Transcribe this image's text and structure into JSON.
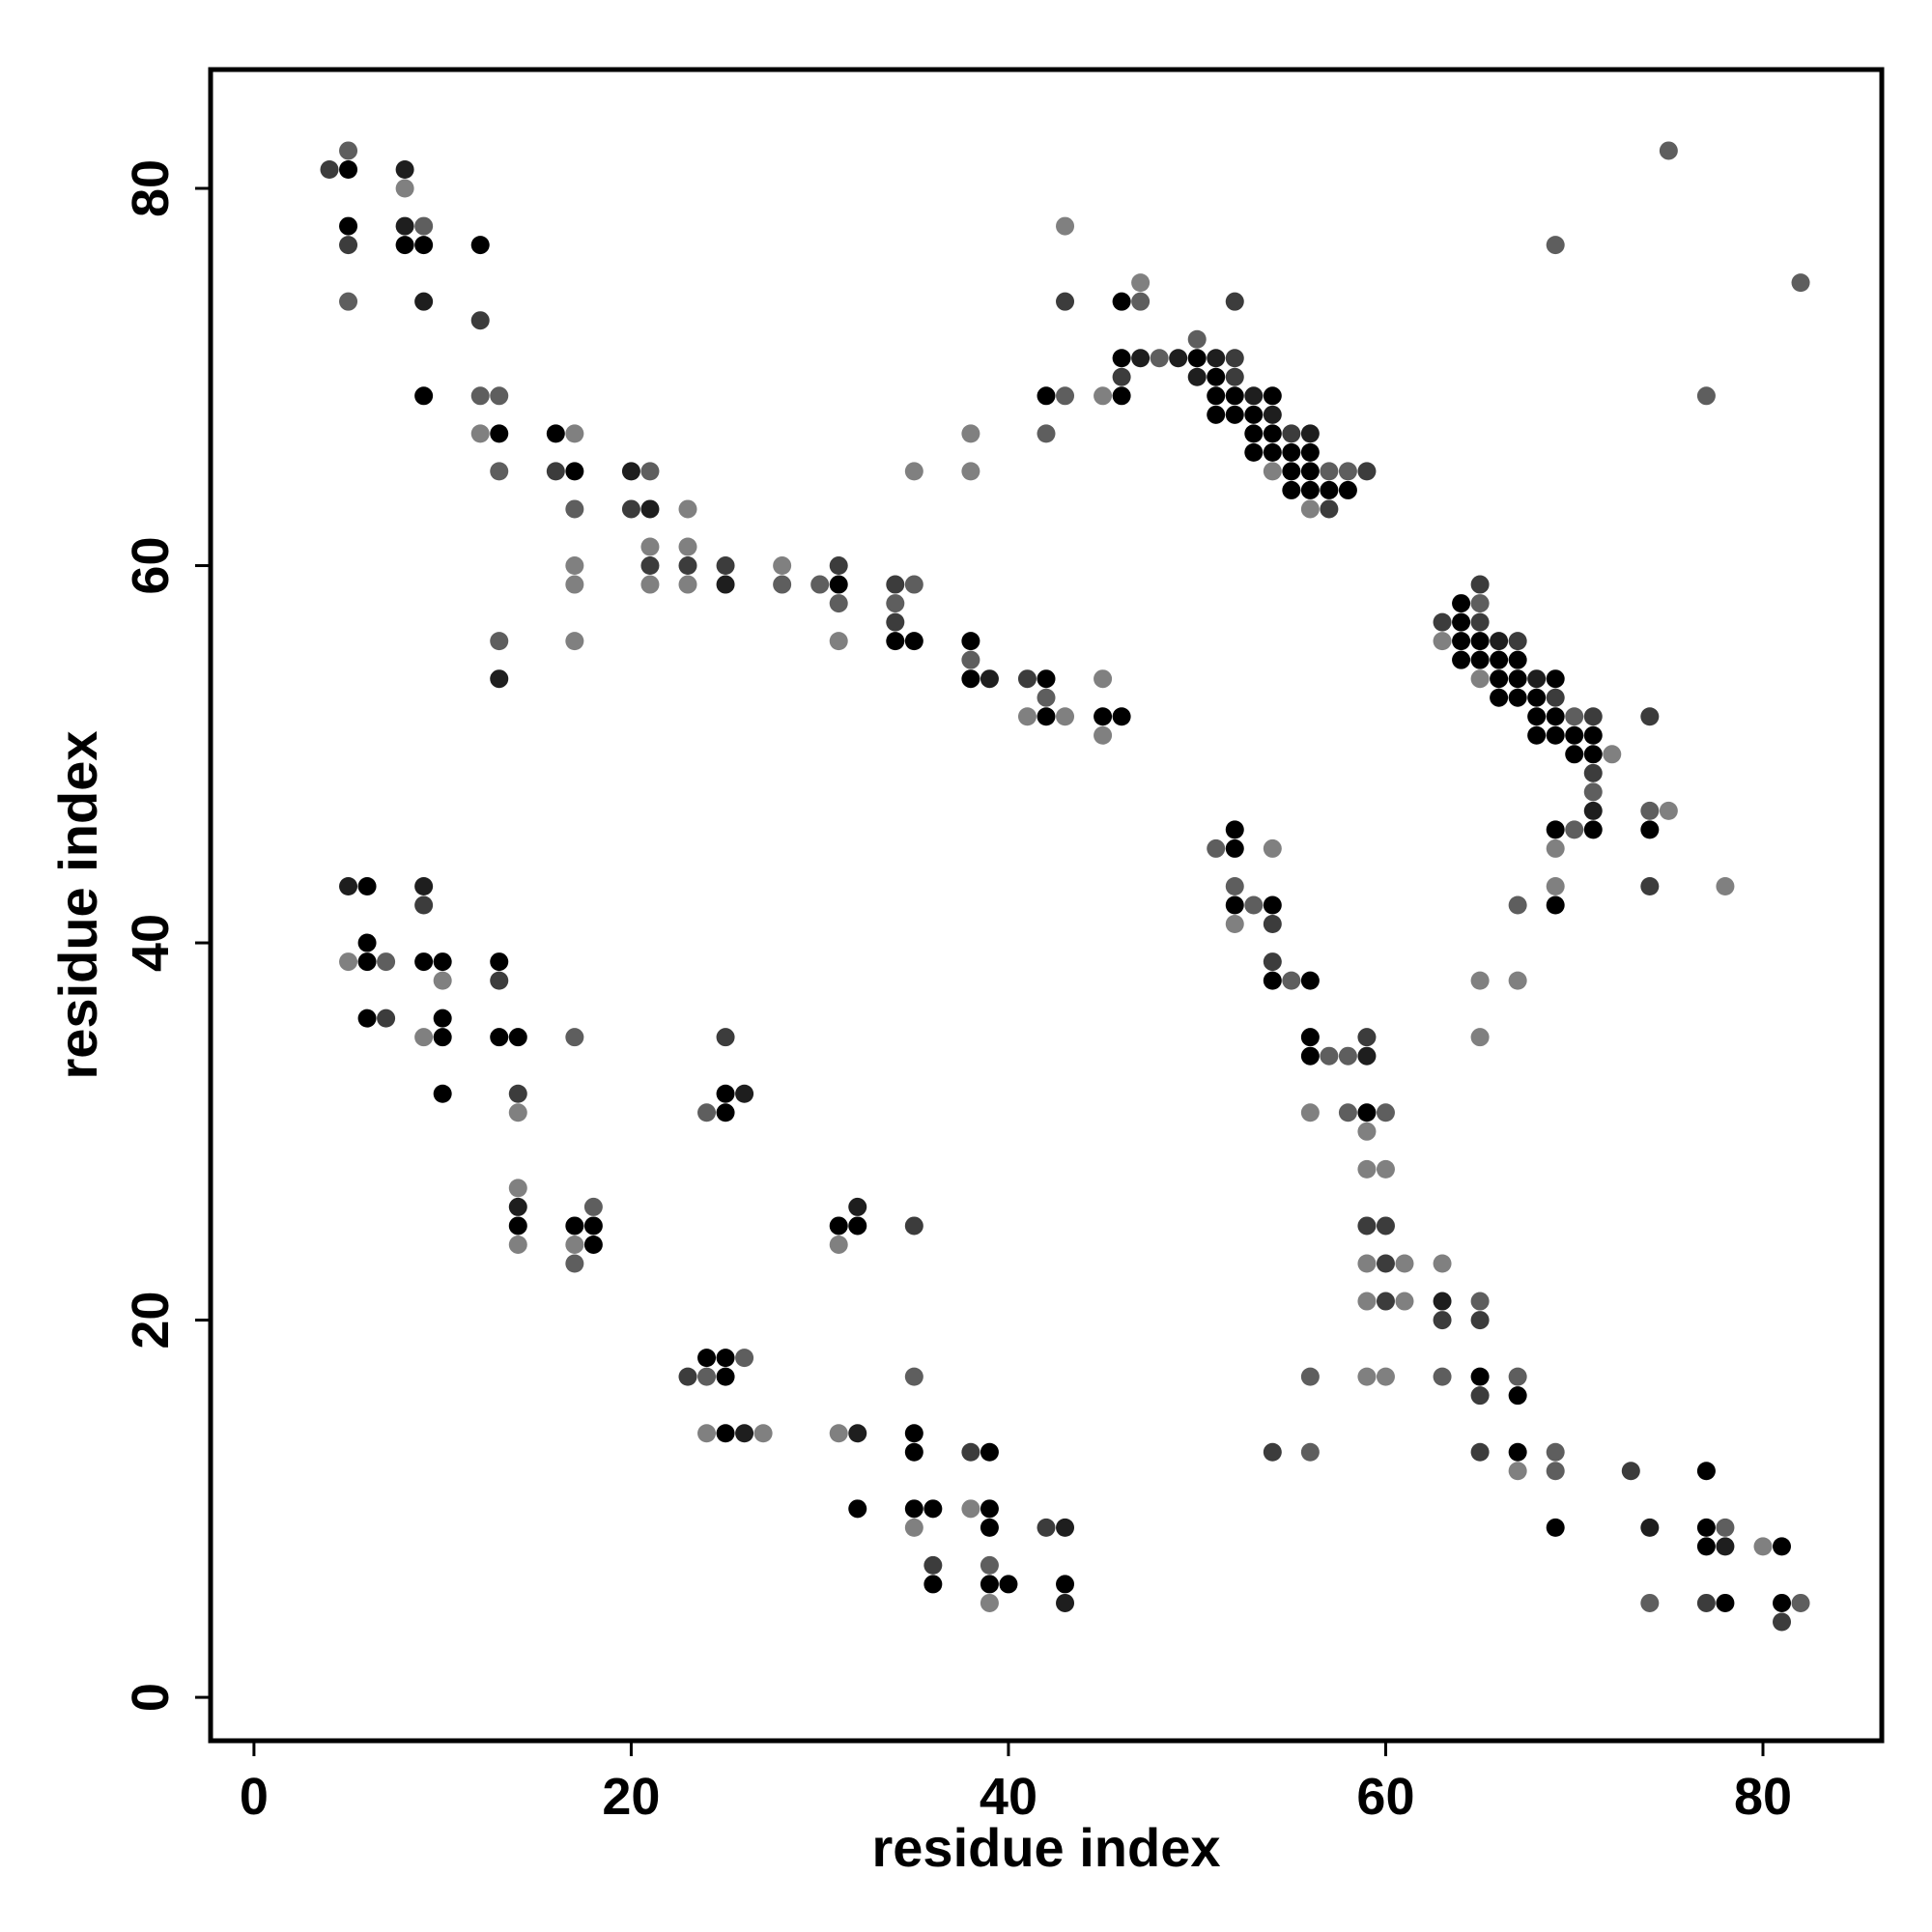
{
  "chart_data": {
    "type": "scatter",
    "title": "",
    "xlabel": "residue index",
    "ylabel": "residue index",
    "xlim": [
      -2.3,
      86.3
    ],
    "ylim": [
      -2.3,
      86.3
    ],
    "xticks": [
      0,
      20,
      40,
      60,
      80
    ],
    "yticks": [
      0,
      20,
      40,
      60,
      80
    ],
    "grid": false,
    "legend": "none",
    "shade_scale": {
      "1": "#000000",
      "2": "#1e1e1e",
      "3": "#3c3c3c",
      "4": "#5e5e5e",
      "5": "#808080"
    },
    "points": [
      [
        4,
        81,
        3
      ],
      [
        5,
        82,
        4
      ],
      [
        5,
        81,
        1
      ],
      [
        5,
        78,
        1
      ],
      [
        5,
        77,
        3
      ],
      [
        5,
        74,
        4
      ],
      [
        8,
        81,
        2
      ],
      [
        8,
        80,
        5
      ],
      [
        8,
        78,
        2
      ],
      [
        8,
        77,
        1
      ],
      [
        9,
        78,
        4
      ],
      [
        9,
        77,
        1
      ],
      [
        9,
        74,
        2
      ],
      [
        9,
        69,
        1
      ],
      [
        12,
        77,
        1
      ],
      [
        12,
        73,
        3
      ],
      [
        12,
        69,
        4
      ],
      [
        12,
        67,
        5
      ],
      [
        13,
        69,
        4
      ],
      [
        13,
        67,
        1
      ],
      [
        13,
        65,
        4
      ],
      [
        13,
        56,
        4
      ],
      [
        13,
        54,
        2
      ],
      [
        16,
        67,
        1
      ],
      [
        16,
        65,
        3
      ],
      [
        17,
        67,
        5
      ],
      [
        17,
        65,
        1
      ],
      [
        17,
        63,
        4
      ],
      [
        17,
        60,
        5
      ],
      [
        17,
        59,
        5
      ],
      [
        17,
        56,
        5
      ],
      [
        20,
        65,
        2
      ],
      [
        20,
        63,
        3
      ],
      [
        21,
        65,
        4
      ],
      [
        21,
        63,
        2
      ],
      [
        21,
        61,
        5
      ],
      [
        21,
        60,
        3
      ],
      [
        21,
        59,
        5
      ],
      [
        23,
        63,
        5
      ],
      [
        23,
        61,
        5
      ],
      [
        23,
        60,
        3
      ],
      [
        23,
        59,
        5
      ],
      [
        25,
        60,
        3
      ],
      [
        25,
        59,
        2
      ],
      [
        28,
        60,
        5
      ],
      [
        28,
        59,
        4
      ],
      [
        30,
        59,
        4
      ],
      [
        31,
        60,
        3
      ],
      [
        31,
        59,
        1
      ],
      [
        31,
        58,
        4
      ],
      [
        31,
        56,
        5
      ],
      [
        34,
        59,
        3
      ],
      [
        34,
        58,
        4
      ],
      [
        34,
        57,
        3
      ],
      [
        34,
        56,
        1
      ],
      [
        35,
        59,
        4
      ],
      [
        35,
        56,
        1
      ],
      [
        35,
        65,
        5
      ],
      [
        38,
        56,
        1
      ],
      [
        38,
        55,
        4
      ],
      [
        38,
        54,
        1
      ],
      [
        39,
        54,
        2
      ],
      [
        38,
        67,
        5
      ],
      [
        38,
        65,
        5
      ],
      [
        41,
        54,
        3
      ],
      [
        41,
        52,
        5
      ],
      [
        42,
        54,
        1
      ],
      [
        42,
        53,
        4
      ],
      [
        42,
        52,
        1
      ],
      [
        43,
        52,
        5
      ],
      [
        42,
        69,
        1
      ],
      [
        42,
        67,
        4
      ],
      [
        43,
        69,
        4
      ],
      [
        43,
        74,
        3
      ],
      [
        43,
        78,
        5
      ],
      [
        45,
        54,
        5
      ],
      [
        45,
        52,
        1
      ],
      [
        45,
        51,
        5
      ],
      [
        46,
        52,
        1
      ],
      [
        45,
        69,
        5
      ],
      [
        46,
        74,
        1
      ],
      [
        46,
        71,
        1
      ],
      [
        46,
        70,
        3
      ],
      [
        46,
        69,
        1
      ],
      [
        47,
        75,
        5
      ],
      [
        47,
        74,
        4
      ],
      [
        47,
        71,
        2
      ],
      [
        48,
        71,
        4
      ],
      [
        49,
        71,
        2
      ],
      [
        50,
        72,
        4
      ],
      [
        50,
        71,
        1
      ],
      [
        50,
        70,
        2
      ],
      [
        51,
        71,
        2
      ],
      [
        51,
        70,
        1
      ],
      [
        51,
        69,
        1
      ],
      [
        51,
        68,
        1
      ],
      [
        52,
        74,
        3
      ],
      [
        52,
        71,
        3
      ],
      [
        52,
        70,
        3
      ],
      [
        52,
        69,
        1
      ],
      [
        52,
        68,
        1
      ],
      [
        53,
        69,
        2
      ],
      [
        53,
        68,
        1
      ],
      [
        53,
        67,
        1
      ],
      [
        53,
        66,
        1
      ],
      [
        54,
        69,
        1
      ],
      [
        54,
        68,
        2
      ],
      [
        54,
        67,
        1
      ],
      [
        54,
        66,
        1
      ],
      [
        54,
        65,
        5
      ],
      [
        55,
        67,
        3
      ],
      [
        55,
        66,
        1
      ],
      [
        55,
        65,
        1
      ],
      [
        55,
        64,
        1
      ],
      [
        56,
        67,
        2
      ],
      [
        56,
        66,
        1
      ],
      [
        56,
        65,
        1
      ],
      [
        56,
        64,
        1
      ],
      [
        56,
        63,
        5
      ],
      [
        57,
        65,
        4
      ],
      [
        57,
        64,
        1
      ],
      [
        57,
        63,
        3
      ],
      [
        58,
        65,
        4
      ],
      [
        58,
        64,
        1
      ],
      [
        59,
        65,
        3
      ],
      [
        63,
        57,
        3
      ],
      [
        63,
        56,
        5
      ],
      [
        64,
        58,
        1
      ],
      [
        64,
        57,
        1
      ],
      [
        64,
        56,
        1
      ],
      [
        64,
        55,
        1
      ],
      [
        65,
        59,
        3
      ],
      [
        65,
        58,
        4
      ],
      [
        65,
        57,
        3
      ],
      [
        65,
        56,
        1
      ],
      [
        65,
        55,
        1
      ],
      [
        65,
        54,
        5
      ],
      [
        66,
        56,
        2
      ],
      [
        66,
        55,
        1
      ],
      [
        66,
        54,
        1
      ],
      [
        66,
        53,
        1
      ],
      [
        67,
        56,
        3
      ],
      [
        67,
        55,
        1
      ],
      [
        67,
        54,
        1
      ],
      [
        67,
        53,
        1
      ],
      [
        68,
        54,
        2
      ],
      [
        68,
        53,
        1
      ],
      [
        68,
        52,
        1
      ],
      [
        68,
        51,
        1
      ],
      [
        69,
        54,
        1
      ],
      [
        69,
        53,
        3
      ],
      [
        69,
        52,
        1
      ],
      [
        69,
        51,
        1
      ],
      [
        70,
        52,
        4
      ],
      [
        70,
        51,
        1
      ],
      [
        70,
        50,
        1
      ],
      [
        71,
        52,
        3
      ],
      [
        71,
        51,
        1
      ],
      [
        71,
        50,
        1
      ],
      [
        71,
        49,
        3
      ],
      [
        71,
        48,
        4
      ],
      [
        71,
        47,
        2
      ],
      [
        71,
        46,
        1
      ],
      [
        72,
        50,
        5
      ],
      [
        70,
        46,
        4
      ],
      [
        69,
        46,
        1
      ],
      [
        69,
        45,
        5
      ],
      [
        69,
        43,
        5
      ],
      [
        69,
        42,
        1
      ],
      [
        69,
        77,
        4
      ],
      [
        67,
        42,
        4
      ],
      [
        74,
        52,
        3
      ],
      [
        74,
        47,
        4
      ],
      [
        74,
        46,
        1
      ],
      [
        74,
        43,
        3
      ],
      [
        75,
        47,
        5
      ],
      [
        78,
        43,
        5
      ],
      [
        75,
        82,
        4
      ],
      [
        77,
        69,
        4
      ],
      [
        82,
        75,
        4
      ],
      [
        51,
        45,
        4
      ],
      [
        52,
        46,
        1
      ],
      [
        52,
        45,
        1
      ],
      [
        52,
        43,
        4
      ],
      [
        52,
        42,
        1
      ],
      [
        52,
        41,
        5
      ],
      [
        53,
        42,
        4
      ],
      [
        54,
        45,
        5
      ],
      [
        54,
        42,
        1
      ],
      [
        54,
        41,
        3
      ],
      [
        54,
        39,
        3
      ],
      [
        54,
        38,
        1
      ],
      [
        55,
        38,
        4
      ],
      [
        56,
        38,
        1
      ],
      [
        56,
        35,
        1
      ],
      [
        56,
        34,
        1
      ],
      [
        57,
        34,
        4
      ],
      [
        58,
        34,
        4
      ],
      [
        59,
        35,
        3
      ],
      [
        59,
        34,
        2
      ],
      [
        56,
        31,
        5
      ],
      [
        58,
        31,
        4
      ],
      [
        59,
        31,
        1
      ],
      [
        59,
        30,
        5
      ],
      [
        60,
        31,
        4
      ],
      [
        59,
        28,
        5
      ],
      [
        60,
        28,
        5
      ],
      [
        59,
        25,
        3
      ],
      [
        60,
        25,
        3
      ],
      [
        59,
        23,
        5
      ],
      [
        60,
        23,
        3
      ],
      [
        61,
        23,
        5
      ],
      [
        59,
        21,
        5
      ],
      [
        60,
        21,
        3
      ],
      [
        61,
        21,
        5
      ],
      [
        59,
        17,
        5
      ],
      [
        60,
        17,
        5
      ],
      [
        56,
        17,
        4
      ],
      [
        63,
        23,
        5
      ],
      [
        63,
        21,
        2
      ],
      [
        63,
        20,
        3
      ],
      [
        63,
        17,
        4
      ],
      [
        65,
        21,
        4
      ],
      [
        65,
        20,
        3
      ],
      [
        65,
        17,
        1
      ],
      [
        65,
        16,
        3
      ],
      [
        65,
        38,
        5
      ],
      [
        65,
        35,
        5
      ],
      [
        67,
        38,
        5
      ],
      [
        67,
        17,
        4
      ],
      [
        67,
        16,
        1
      ],
      [
        67,
        13,
        1
      ],
      [
        67,
        12,
        5
      ],
      [
        69,
        13,
        4
      ],
      [
        69,
        12,
        4
      ],
      [
        69,
        9,
        1
      ],
      [
        65,
        13,
        3
      ],
      [
        54,
        13,
        3
      ],
      [
        56,
        13,
        4
      ],
      [
        73,
        12,
        3
      ],
      [
        74,
        9,
        2
      ],
      [
        74,
        5,
        4
      ],
      [
        77,
        12,
        1
      ],
      [
        77,
        9,
        1
      ],
      [
        77,
        8,
        1
      ],
      [
        77,
        5,
        3
      ],
      [
        78,
        9,
        4
      ],
      [
        78,
        8,
        2
      ],
      [
        78,
        5,
        1
      ],
      [
        80,
        8,
        5
      ],
      [
        81,
        8,
        1
      ],
      [
        81,
        5,
        1
      ],
      [
        81,
        4,
        3
      ],
      [
        82,
        5,
        4
      ],
      [
        5,
        43,
        2
      ],
      [
        6,
        43,
        1
      ],
      [
        5,
        39,
        5
      ],
      [
        6,
        40,
        1
      ],
      [
        6,
        39,
        1
      ],
      [
        7,
        39,
        4
      ],
      [
        6,
        36,
        1
      ],
      [
        7,
        36,
        3
      ],
      [
        9,
        43,
        2
      ],
      [
        9,
        42,
        3
      ],
      [
        9,
        39,
        1
      ],
      [
        10,
        39,
        1
      ],
      [
        10,
        38,
        5
      ],
      [
        10,
        36,
        1
      ],
      [
        9,
        35,
        5
      ],
      [
        10,
        35,
        1
      ],
      [
        10,
        32,
        1
      ],
      [
        13,
        39,
        1
      ],
      [
        13,
        38,
        3
      ],
      [
        13,
        35,
        1
      ],
      [
        14,
        35,
        1
      ],
      [
        14,
        32,
        3
      ],
      [
        14,
        31,
        5
      ],
      [
        17,
        35,
        4
      ],
      [
        14,
        27,
        5
      ],
      [
        14,
        26,
        2
      ],
      [
        14,
        25,
        1
      ],
      [
        14,
        24,
        5
      ],
      [
        17,
        25,
        1
      ],
      [
        17,
        24,
        5
      ],
      [
        17,
        23,
        4
      ],
      [
        18,
        26,
        4
      ],
      [
        18,
        25,
        1
      ],
      [
        18,
        24,
        1
      ],
      [
        24,
        31,
        4
      ],
      [
        25,
        35,
        3
      ],
      [
        25,
        32,
        1
      ],
      [
        25,
        31,
        1
      ],
      [
        26,
        32,
        2
      ],
      [
        31,
        25,
        1
      ],
      [
        31,
        24,
        5
      ],
      [
        32,
        26,
        2
      ],
      [
        32,
        25,
        1
      ],
      [
        35,
        25,
        3
      ],
      [
        23,
        17,
        3
      ],
      [
        24,
        18,
        1
      ],
      [
        24,
        17,
        4
      ],
      [
        25,
        18,
        1
      ],
      [
        25,
        17,
        1
      ],
      [
        26,
        18,
        4
      ],
      [
        24,
        14,
        5
      ],
      [
        25,
        14,
        1
      ],
      [
        26,
        14,
        2
      ],
      [
        27,
        14,
        5
      ],
      [
        31,
        14,
        5
      ],
      [
        32,
        14,
        2
      ],
      [
        32,
        10,
        1
      ],
      [
        35,
        17,
        4
      ],
      [
        35,
        14,
        1
      ],
      [
        35,
        13,
        1
      ],
      [
        35,
        10,
        1
      ],
      [
        35,
        9,
        5
      ],
      [
        36,
        10,
        1
      ],
      [
        36,
        7,
        3
      ],
      [
        36,
        6,
        1
      ],
      [
        38,
        13,
        3
      ],
      [
        39,
        13,
        1
      ],
      [
        38,
        10,
        5
      ],
      [
        39,
        10,
        1
      ],
      [
        39,
        9,
        1
      ],
      [
        39,
        7,
        4
      ],
      [
        39,
        6,
        1
      ],
      [
        39,
        5,
        5
      ],
      [
        40,
        6,
        1
      ],
      [
        42,
        9,
        3
      ],
      [
        43,
        9,
        2
      ],
      [
        43,
        6,
        1
      ],
      [
        43,
        5,
        2
      ]
    ]
  }
}
